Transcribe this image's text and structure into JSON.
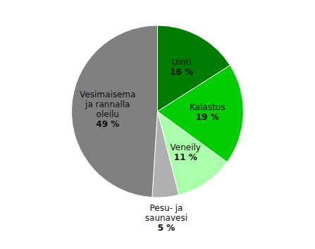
{
  "chart_data": {
    "type": "pie",
    "categories": [
      "Uinti",
      "Kalastus",
      "Veneily",
      "Pesu- ja\nsaunavesi",
      "Vesimaisema\nja rannalla\noleilu"
    ],
    "values": [
      16,
      19,
      11,
      5,
      49
    ],
    "value_labels": [
      "16 %",
      "19 %",
      "11 %",
      "5 %",
      "49 %"
    ],
    "colors": [
      "#007d00",
      "#00cc00",
      "#aaffaa",
      "#b0b0b0",
      "#808080"
    ],
    "data_labels": true
  }
}
